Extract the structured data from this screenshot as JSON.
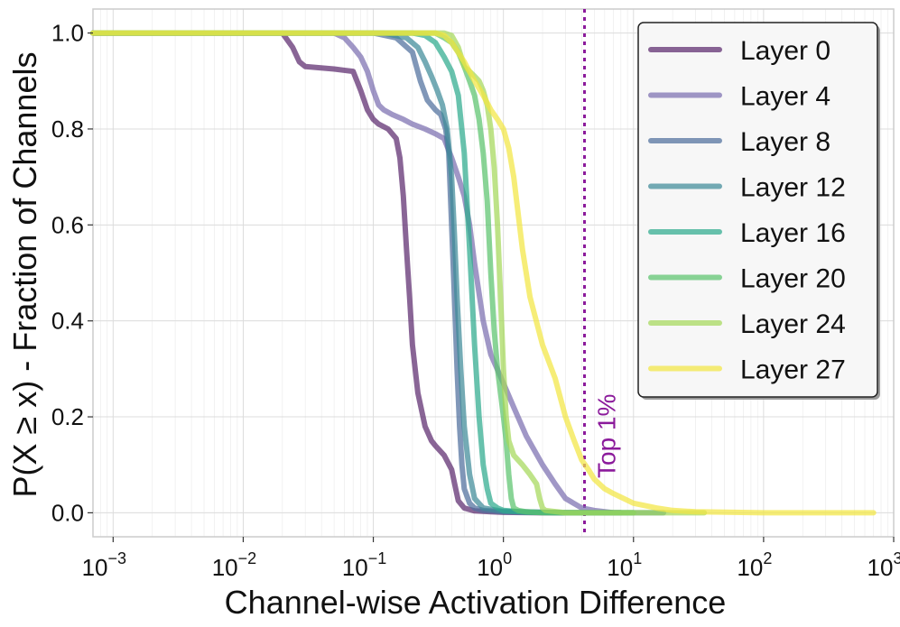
{
  "chart_data": {
    "type": "line",
    "title": "",
    "xlabel": "Channel-wise Activation Difference",
    "ylabel": "P(X ≥ x) - Fraction of Channels",
    "xscale": "log",
    "xlim": [
      0.0007,
      1000
    ],
    "ylim": [
      -0.05,
      1.05
    ],
    "grid": true,
    "legend_position": "top-right",
    "x_ticks": [
      {
        "value": 0.001,
        "base": "10",
        "exp": "−3"
      },
      {
        "value": 0.01,
        "base": "10",
        "exp": "−2"
      },
      {
        "value": 0.1,
        "base": "10",
        "exp": "−1"
      },
      {
        "value": 1,
        "base": "10",
        "exp": "0"
      },
      {
        "value": 10,
        "base": "10",
        "exp": "1"
      },
      {
        "value": 100,
        "base": "10",
        "exp": "2"
      },
      {
        "value": 1000,
        "base": "10",
        "exp": "3"
      }
    ],
    "y_ticks": [
      {
        "value": 0.0,
        "label": "0.0"
      },
      {
        "value": 0.2,
        "label": "0.2"
      },
      {
        "value": 0.4,
        "label": "0.4"
      },
      {
        "value": 0.6,
        "label": "0.6"
      },
      {
        "value": 0.8,
        "label": "0.8"
      },
      {
        "value": 1.0,
        "label": "1.0"
      }
    ],
    "annotation": {
      "label": "Top 1%",
      "x": 4.2,
      "color": "#8b1a9b"
    },
    "series": [
      {
        "name": "Layer 0",
        "color": "#5c2a6e",
        "x": [
          0.0007,
          0.02,
          0.024,
          0.027,
          0.03,
          0.05,
          0.07,
          0.08,
          0.09,
          0.1,
          0.11,
          0.13,
          0.15,
          0.16,
          0.17,
          0.18,
          0.19,
          0.2,
          0.22,
          0.25,
          0.28,
          0.3,
          0.35,
          0.4,
          0.43,
          0.45,
          0.5,
          0.6,
          0.8,
          1.0,
          2.0,
          5.0,
          8.0
        ],
        "y": [
          1.0,
          1.0,
          0.97,
          0.94,
          0.93,
          0.925,
          0.92,
          0.88,
          0.84,
          0.82,
          0.81,
          0.8,
          0.78,
          0.74,
          0.66,
          0.55,
          0.45,
          0.35,
          0.25,
          0.18,
          0.15,
          0.14,
          0.12,
          0.09,
          0.05,
          0.025,
          0.01,
          0.004,
          0.002,
          0.001,
          0.0,
          0.0,
          0.0
        ]
      },
      {
        "name": "Layer 4",
        "color": "#7b6fb0",
        "x": [
          0.0007,
          0.05,
          0.06,
          0.07,
          0.08,
          0.09,
          0.1,
          0.11,
          0.12,
          0.14,
          0.17,
          0.2,
          0.25,
          0.3,
          0.35,
          0.4,
          0.45,
          0.5,
          0.55,
          0.6,
          0.7,
          0.8,
          1.0,
          1.2,
          1.5,
          2.0,
          2.5,
          3.0,
          4.0,
          5.0,
          7.0
        ],
        "y": [
          1.0,
          1.0,
          0.99,
          0.97,
          0.95,
          0.92,
          0.88,
          0.85,
          0.84,
          0.83,
          0.82,
          0.81,
          0.8,
          0.79,
          0.78,
          0.74,
          0.7,
          0.66,
          0.6,
          0.52,
          0.4,
          0.33,
          0.27,
          0.22,
          0.16,
          0.1,
          0.06,
          0.03,
          0.01,
          0.005,
          0.0
        ]
      },
      {
        "name": "Layer 8",
        "color": "#4f6f9c",
        "x": [
          0.0007,
          0.1,
          0.15,
          0.2,
          0.23,
          0.26,
          0.3,
          0.33,
          0.36,
          0.38,
          0.4,
          0.42,
          0.44,
          0.46,
          0.48,
          0.5,
          0.55,
          0.6,
          0.7,
          1.0,
          3.0,
          8.0
        ],
        "y": [
          1.0,
          1.0,
          0.99,
          0.96,
          0.9,
          0.86,
          0.84,
          0.83,
          0.8,
          0.75,
          0.6,
          0.45,
          0.3,
          0.18,
          0.1,
          0.05,
          0.02,
          0.01,
          0.005,
          0.002,
          0.0,
          0.0
        ]
      },
      {
        "name": "Layer 12",
        "color": "#3f8a99",
        "x": [
          0.0007,
          0.12,
          0.18,
          0.22,
          0.25,
          0.28,
          0.31,
          0.34,
          0.37,
          0.4,
          0.42,
          0.44,
          0.47,
          0.5,
          0.55,
          0.6,
          0.7,
          1.0,
          3.0,
          10.0,
          17.0
        ],
        "y": [
          1.0,
          1.0,
          0.99,
          0.97,
          0.94,
          0.91,
          0.88,
          0.85,
          0.8,
          0.7,
          0.58,
          0.45,
          0.3,
          0.18,
          0.08,
          0.03,
          0.01,
          0.003,
          0.0,
          0.0,
          0.0
        ]
      },
      {
        "name": "Layer 16",
        "color": "#2eaa8e",
        "x": [
          0.0007,
          0.2,
          0.25,
          0.3,
          0.35,
          0.4,
          0.45,
          0.5,
          0.55,
          0.6,
          0.65,
          0.7,
          0.75,
          0.8,
          0.9,
          1.0,
          1.5,
          5.0,
          10.0
        ],
        "y": [
          1.0,
          1.0,
          0.995,
          0.98,
          0.95,
          0.92,
          0.87,
          0.75,
          0.55,
          0.35,
          0.2,
          0.1,
          0.05,
          0.02,
          0.01,
          0.005,
          0.001,
          0.0,
          0.0
        ]
      },
      {
        "name": "Layer 20",
        "color": "#5cc46e",
        "x": [
          0.0007,
          0.3,
          0.35,
          0.4,
          0.45,
          0.5,
          0.55,
          0.6,
          0.65,
          0.7,
          0.75,
          0.8,
          0.85,
          0.9,
          0.95,
          1.0,
          1.05,
          1.1,
          1.15,
          1.2,
          1.3,
          1.5,
          2.0,
          5.0,
          10.0
        ],
        "y": [
          1.0,
          1.0,
          0.99,
          0.98,
          0.96,
          0.93,
          0.9,
          0.87,
          0.82,
          0.75,
          0.65,
          0.5,
          0.38,
          0.3,
          0.25,
          0.2,
          0.15,
          0.08,
          0.03,
          0.01,
          0.005,
          0.002,
          0.0,
          0.0,
          0.0
        ]
      },
      {
        "name": "Layer 24",
        "color": "#a5d85a",
        "x": [
          0.0007,
          0.35,
          0.4,
          0.45,
          0.5,
          0.55,
          0.6,
          0.65,
          0.7,
          0.75,
          0.8,
          0.85,
          0.9,
          0.95,
          1.0,
          1.05,
          1.1,
          1.2,
          1.4,
          1.6,
          1.8,
          1.9,
          2.0,
          2.1,
          3.0,
          10.0,
          35.0
        ],
        "y": [
          1.0,
          1.0,
          0.995,
          0.97,
          0.93,
          0.92,
          0.91,
          0.9,
          0.88,
          0.85,
          0.8,
          0.72,
          0.6,
          0.45,
          0.3,
          0.2,
          0.15,
          0.12,
          0.1,
          0.08,
          0.06,
          0.03,
          0.01,
          0.005,
          0.0,
          0.0,
          0.0
        ]
      },
      {
        "name": "Layer 27",
        "color": "#f2e642",
        "x": [
          0.0007,
          0.3,
          0.35,
          0.4,
          0.5,
          0.6,
          0.7,
          0.8,
          0.9,
          1.0,
          1.1,
          1.2,
          1.4,
          1.6,
          2.0,
          2.5,
          3.0,
          3.5,
          4.0,
          4.5,
          5.0,
          6.0,
          7.0,
          10.0,
          15.0,
          20.0,
          30.0,
          100.0,
          300.0,
          700.0
        ],
        "y": [
          1.0,
          1.0,
          0.995,
          0.98,
          0.94,
          0.9,
          0.87,
          0.84,
          0.82,
          0.8,
          0.76,
          0.7,
          0.55,
          0.45,
          0.35,
          0.28,
          0.2,
          0.15,
          0.11,
          0.09,
          0.07,
          0.05,
          0.04,
          0.02,
          0.01,
          0.005,
          0.002,
          0.0,
          0.0,
          0.0
        ]
      }
    ]
  }
}
